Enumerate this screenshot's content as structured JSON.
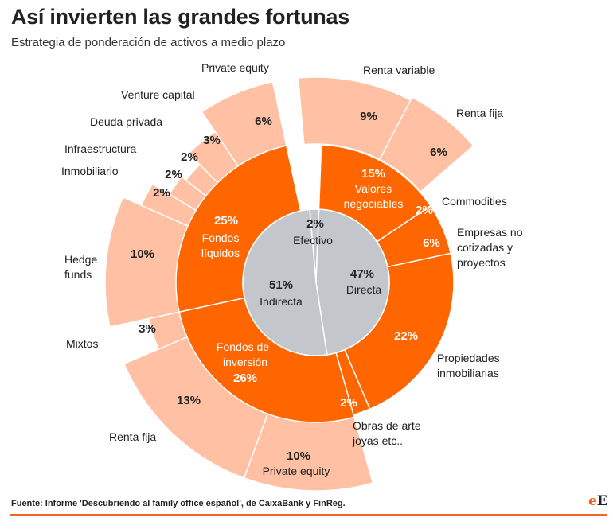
{
  "header": {
    "title": "Así invierten las grandes fortunas",
    "subtitle": "Estrategia de ponderación de activos a medio plazo"
  },
  "footer": {
    "source": "Fuente: Informe 'Descubriendo al family office español', de CaixaBank y FinReg.",
    "logo_e1": "e",
    "logo_e2": "E"
  },
  "colors": {
    "inner": "#c3c7cc",
    "middle": "#ff6600",
    "outer": "#ffc0a3",
    "separator": "#ffffff",
    "footer_rule": "#f26522"
  },
  "chart_data": {
    "type": "sunburst",
    "title": "Así invierten las grandes fortunas",
    "subtitle": "Estrategia de ponderación de activos a medio plazo",
    "unit": "%",
    "inner": [
      {
        "name": "Efectivo",
        "value": 2,
        "label": "2%"
      },
      {
        "name": "Directa",
        "value": 47,
        "label": "47%"
      },
      {
        "name": "Indirecta",
        "value": 51,
        "label": "51%"
      }
    ],
    "middle": [
      {
        "name": "Valores negociables",
        "value": 15,
        "label": "15%",
        "parent": "Directa"
      },
      {
        "name": "Empresas no cotizadas y proyectos",
        "value": 6,
        "label": "",
        "parent": "Directa"
      },
      {
        "name": "Propiedades inmobiliarias",
        "value": 22,
        "label": "22%",
        "parent": "Directa"
      },
      {
        "name": "Obras de arte joyas etc..",
        "value": 2,
        "label": "",
        "parent": "Directa"
      },
      {
        "name": "Fondos de inversión",
        "value": 26,
        "label": "26%",
        "parent": "Indirecta"
      },
      {
        "name": "Fondos líquidos",
        "value": 25,
        "label": "25%",
        "parent": "Indirecta"
      }
    ],
    "outer": [
      {
        "name": "Renta variable",
        "value": 9,
        "label": "9%",
        "parent": "Valores negociables"
      },
      {
        "name": "Renta fija",
        "value": 6,
        "label": "6%",
        "parent": "Valores negociables"
      },
      {
        "name": "Commodities",
        "value": 2,
        "label": "2%",
        "parent": "Directa"
      },
      {
        "name": "Empresas no cotizadas y proyectos",
        "value": 6,
        "label": "6%",
        "parent": "Directa"
      },
      {
        "name": "Propiedades inmobiliarias",
        "value": 22,
        "label": "22%",
        "parent": "Directa"
      },
      {
        "name": "Obras de arte joyas etc..",
        "value": 2,
        "label": "2%",
        "parent": "Directa"
      },
      {
        "name": "Private equity",
        "value": 10,
        "label": "10%",
        "parent": "Fondos de inversión"
      },
      {
        "name": "Renta fija",
        "value": 13,
        "label": "13%",
        "parent": "Fondos de inversión"
      },
      {
        "name": "Mixtos",
        "value": 3,
        "label": "3%",
        "parent": "Fondos de inversión"
      },
      {
        "name": "Hedge funds",
        "value": 10,
        "label": "10%",
        "parent": "Fondos líquidos"
      },
      {
        "name": "Inmobiliario",
        "value": 2,
        "label": "2%",
        "parent": "Fondos líquidos"
      },
      {
        "name": "Infraestructura",
        "value": 2,
        "label": "2%",
        "parent": "Fondos líquidos"
      },
      {
        "name": "Deuda privada",
        "value": 2,
        "label": "2%",
        "parent": "Fondos líquidos"
      },
      {
        "name": "Venture capital",
        "value": 3,
        "label": "3%",
        "parent": "Fondos líquidos"
      },
      {
        "name": "Private equity",
        "value": 6,
        "label": "6%",
        "parent": "Fondos líquidos"
      }
    ],
    "labels": {
      "efectivo": {
        "pct": "2%",
        "name": "Efectivo"
      },
      "directa": {
        "pct": "47%",
        "name": "Directa"
      },
      "indirecta": {
        "pct": "51%",
        "name": "Indirecta"
      },
      "valores": {
        "pct": "15%",
        "line1": "Valores",
        "line2": "negociables"
      },
      "propiedades_pct": "22%",
      "inversion": {
        "line1": "Fondos de",
        "line2": "inversión",
        "pct": "26%"
      },
      "liquidos": {
        "pct": "25%",
        "line1": "Fondos",
        "line2": "líquidos"
      },
      "outer_names": {
        "renta_variable": "Renta variable",
        "renta_fija_top": "Renta fija",
        "commodities": "Commodities",
        "empresas": [
          "Empresas no",
          "cotizadas y",
          "proyectos"
        ],
        "propiedades": [
          "Propiedades",
          "inmobiliarias"
        ],
        "obras": [
          "Obras de arte",
          "joyas etc.."
        ],
        "private_equity_bottom": "Private equity",
        "renta_fija_bottom": "Renta fija",
        "mixtos": "Mixtos",
        "hedge": [
          "Hedge",
          "funds"
        ],
        "inmobiliario": "Inmobiliario",
        "infraestructura": "Infraestructura",
        "deuda_privada": "Deuda privada",
        "venture_capital": "Venture capital",
        "private_equity_top": "Private equity"
      }
    }
  }
}
